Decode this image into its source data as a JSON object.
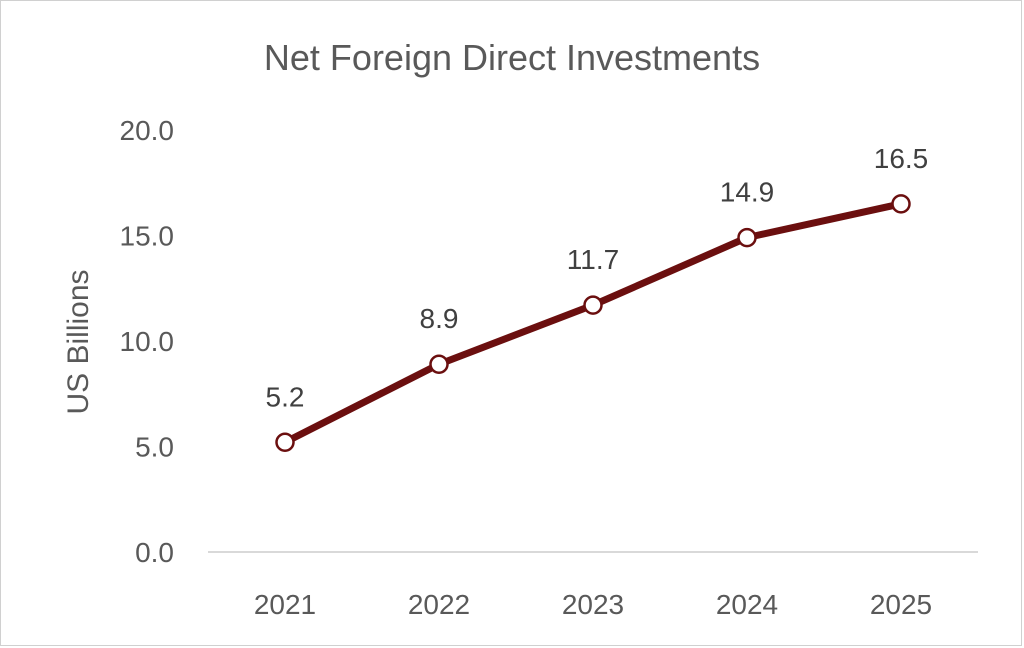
{
  "chart_data": {
    "type": "line",
    "title": "Net Foreign Direct Investments",
    "xlabel": "",
    "ylabel": "US Billions",
    "categories": [
      "2021",
      "2022",
      "2023",
      "2024",
      "2025"
    ],
    "series": [
      {
        "values": [
          5.2,
          8.9,
          11.7,
          14.9,
          16.5
        ],
        "labels": [
          "5.2",
          "8.9",
          "11.7",
          "14.9",
          "16.5"
        ],
        "color": "#6b0f0f"
      }
    ],
    "ylim": [
      0,
      20
    ],
    "yticks": [
      0,
      5,
      10,
      15,
      20
    ],
    "ytick_labels": [
      "0.0",
      "5.0",
      "10.0",
      "15.0",
      "20.0"
    ],
    "grid": false,
    "legend": "none",
    "axis_color": "#d9d9d9"
  }
}
